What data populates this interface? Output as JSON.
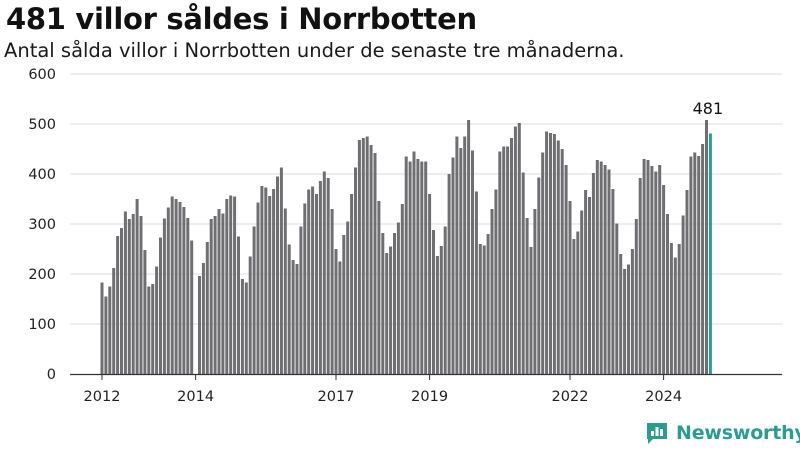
{
  "header": {
    "title": "481 villor såldes i Norrbotten",
    "subtitle": "Antal sålda villor i Norrbotten under de senaste tre månaderna."
  },
  "brand": {
    "name": "Newsworthy",
    "icon": "newsworthy-logo-icon",
    "color": "#2a9d8f"
  },
  "chart_data": {
    "type": "bar",
    "title": "481 villor såldes i Norrbotten",
    "subtitle": "Antal sålda villor i Norrbotten under de senaste tre månaderna.",
    "xlabel": "",
    "ylabel": "",
    "ylim": [
      0,
      600
    ],
    "yticks": [
      0,
      100,
      200,
      300,
      400,
      500,
      600
    ],
    "xticks": [
      "2012",
      "2014",
      "2017",
      "2019",
      "2022",
      "2024"
    ],
    "xtick_index": [
      0,
      24,
      60,
      84,
      120,
      144
    ],
    "grid": true,
    "bar_color": "#6f6e71",
    "highlight_color": "#2a9d8f",
    "last_value_label": "481",
    "values": [
      183,
      155,
      175,
      212,
      276,
      292,
      325,
      310,
      320,
      350,
      316,
      248,
      175,
      180,
      215,
      273,
      311,
      333,
      355,
      350,
      344,
      334,
      312,
      267,
      0,
      196,
      222,
      264,
      310,
      316,
      330,
      321,
      350,
      357,
      355,
      275,
      190,
      183,
      235,
      295,
      343,
      376,
      373,
      356,
      370,
      395,
      413,
      331,
      259,
      228,
      220,
      295,
      341,
      369,
      375,
      360,
      386,
      405,
      392,
      330,
      250,
      225,
      278,
      305,
      360,
      413,
      468,
      472,
      475,
      458,
      442,
      346,
      282,
      242,
      255,
      282,
      303,
      340,
      435,
      425,
      445,
      430,
      425,
      425,
      360,
      288,
      236,
      256,
      295,
      400,
      433,
      475,
      452,
      475,
      508,
      447,
      365,
      260,
      257,
      280,
      330,
      369,
      445,
      455,
      455,
      472,
      495,
      502,
      403,
      312,
      254,
      330,
      393,
      443,
      485,
      482,
      480,
      467,
      450,
      418,
      346,
      270,
      285,
      327,
      368,
      354,
      402,
      428,
      425,
      418,
      409,
      370,
      301,
      240,
      210,
      219,
      250,
      310,
      392,
      430,
      428,
      416,
      405,
      418,
      378,
      320,
      262,
      233,
      260,
      317,
      368,
      435,
      443,
      436,
      460,
      508,
      481
    ]
  }
}
